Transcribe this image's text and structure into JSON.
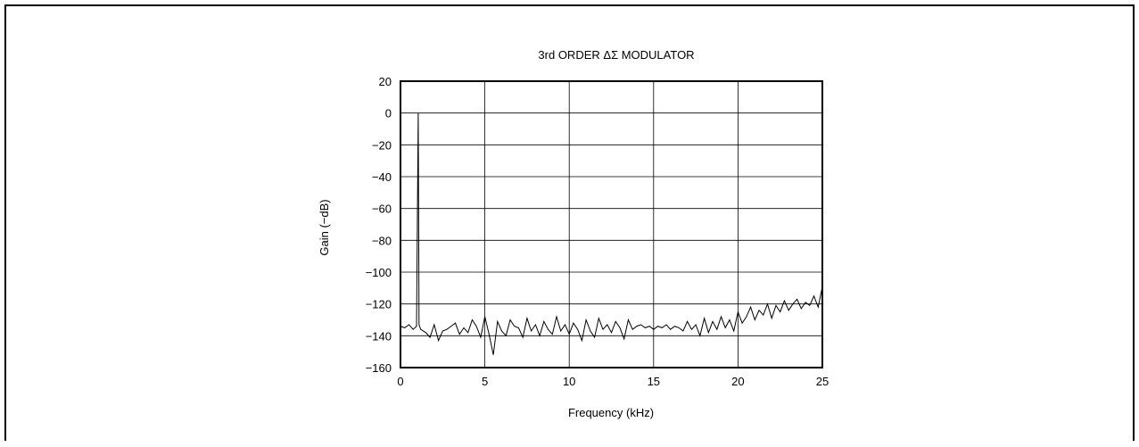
{
  "chart_data": {
    "type": "line",
    "title": "3rd ORDER ΔΣ MODULATOR",
    "xlabel": "Frequency (kHz)",
    "ylabel": "Gain (−dB)",
    "xlim": [
      0,
      25
    ],
    "ylim": [
      -160,
      20
    ],
    "xticks": [
      0,
      5,
      10,
      15,
      20,
      25
    ],
    "xtick_labels": [
      "0",
      "5",
      "10",
      "15",
      "20",
      "25"
    ],
    "yticks": [
      20,
      0,
      -20,
      -40,
      -60,
      -80,
      -100,
      -120,
      -140,
      -160
    ],
    "ytick_labels": [
      "20",
      "0",
      "−20",
      "−40",
      "−60",
      "−80",
      "−100",
      "−120",
      "−140",
      "−160"
    ],
    "grid": true,
    "legend": "none",
    "line_color": "#000000",
    "series": [
      {
        "x": [
          0.0,
          0.25,
          0.5,
          0.75,
          0.95,
          1.05,
          1.1,
          1.2,
          1.5,
          1.75,
          2.0,
          2.25,
          2.5,
          2.75,
          3.0,
          3.25,
          3.5,
          3.75,
          4.0,
          4.25,
          4.5,
          4.75,
          5.0,
          5.25,
          5.5,
          5.75,
          6.0,
          6.25,
          6.5,
          6.75,
          7.0,
          7.25,
          7.5,
          7.75,
          8.0,
          8.25,
          8.5,
          8.75,
          9.0,
          9.25,
          9.5,
          9.75,
          10.0,
          10.25,
          10.5,
          10.75,
          11.0,
          11.25,
          11.5,
          11.75,
          12.0,
          12.25,
          12.5,
          12.75,
          13.0,
          13.25,
          13.5,
          13.75,
          14.0,
          14.25,
          14.5,
          14.75,
          15.0,
          15.25,
          15.5,
          15.75,
          16.0,
          16.25,
          16.5,
          16.75,
          17.0,
          17.25,
          17.5,
          17.75,
          18.0,
          18.25,
          18.5,
          18.75,
          19.0,
          19.25,
          19.5,
          19.75,
          20.0,
          20.25,
          20.5,
          20.75,
          21.0,
          21.25,
          21.5,
          21.75,
          22.0,
          22.25,
          22.5,
          22.75,
          23.0,
          23.25,
          23.5,
          23.75,
          24.0,
          24.25,
          24.5,
          24.75,
          25.0
        ],
        "y": [
          -134,
          -135,
          -133,
          -136,
          -134,
          0,
          -133,
          -136,
          -138,
          -141,
          -133,
          -143,
          -137,
          -136,
          -134,
          -132,
          -139,
          -135,
          -138,
          -130,
          -134,
          -141,
          -128,
          -139,
          -152,
          -131,
          -137,
          -140,
          -130,
          -134,
          -135,
          -141,
          -129,
          -137,
          -133,
          -140,
          -131,
          -136,
          -139,
          -128,
          -137,
          -133,
          -139,
          -132,
          -136,
          -143,
          -130,
          -137,
          -141,
          -129,
          -136,
          -133,
          -138,
          -131,
          -135,
          -142,
          -130,
          -136,
          -134,
          -133,
          -135,
          -134,
          -136,
          -134,
          -135,
          -133,
          -136,
          -134,
          -135,
          -137,
          -131,
          -136,
          -133,
          -140,
          -129,
          -138,
          -131,
          -136,
          -128,
          -135,
          -130,
          -137,
          -125,
          -132,
          -128,
          -122,
          -130,
          -124,
          -127,
          -120,
          -129,
          -121,
          -125,
          -118,
          -124,
          -120,
          -117,
          -123,
          -119,
          -121,
          -115,
          -122,
          -109
        ]
      }
    ]
  }
}
